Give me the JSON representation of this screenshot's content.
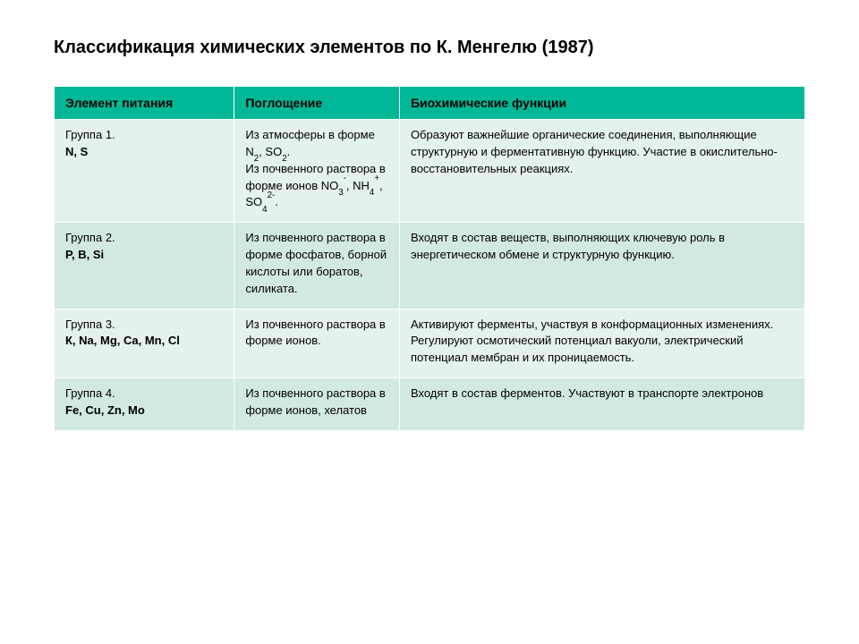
{
  "title": "Классификация химических элементов по К. Менгелю (1987)",
  "table": {
    "type": "table",
    "header_bg": "#00b897",
    "row_colors": [
      "#e4f2ec",
      "#d2e9df",
      "#e4f2ec",
      "#d2e9df"
    ],
    "text_color": "#000000",
    "border_color": "#ffffff",
    "header_fontsize": 14,
    "cell_fontsize": 13,
    "columns": [
      {
        "label": "Элемент питания",
        "width_pct": 24
      },
      {
        "label": "Поглощение",
        "width_pct": 22
      },
      {
        "label": "Биохимические функции",
        "width_pct": 54
      }
    ],
    "rows": [
      {
        "group": "Группа 1.",
        "elements": "N, S",
        "absorption_html": "Из атмосферы в форме N<sub>2</sub>, SO<sub>2</sub>.<br>Из почвенного раствора в форме ионов NO<sub>3</sub><sup>-</sup>, NH<sub>4</sub><sup>+</sup>, SO<sub>4</sub><sup>2-</sup>.",
        "functions": "Образуют важнейшие органические соединения, выполняющие структурную и ферментативную функцию. Участие в окислительно-восстановительных реакциях."
      },
      {
        "group": "Группа 2.",
        "elements": "P, B, Si",
        "absorption_html": "Из почвенного раствора в форме фосфатов, борной кислоты или боратов, силиката.",
        "functions": "Входят в состав веществ, выполняющих ключевую роль в энергетическом обмене и структурную функцию."
      },
      {
        "group": "Группа 3.",
        "elements": "К, Na, Mg, Ca, Mn, Cl",
        "absorption_html": "Из почвенного раствора в форме ионов.",
        "functions": "Активируют ферменты, участвуя в конформационных изменениях. Регулируют осмотический потенциал вакуоли, электрический потенциал мембран и их проницаемость."
      },
      {
        "group": "Группа 4.",
        "elements": "Fe, Cu, Zn, Mo",
        "absorption_html": "Из почвенного раствора в форме ионов, хелатов",
        "functions": "Входят в состав ферментов. Участвуют в транспорте электронов"
      }
    ]
  }
}
